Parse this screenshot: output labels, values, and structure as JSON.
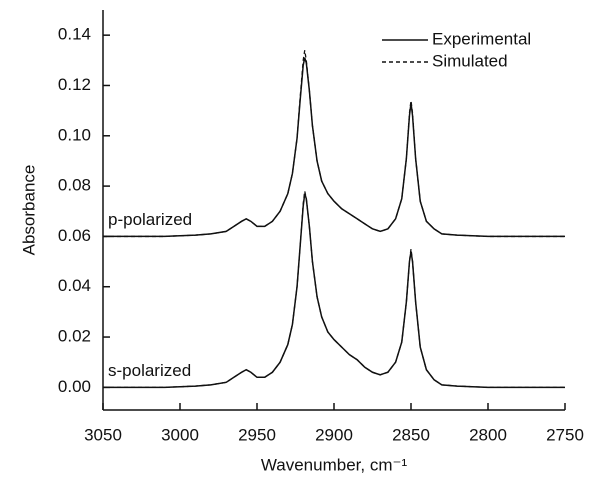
{
  "chart_data": {
    "type": "line",
    "xlabel": "Wavenumber, cm⁻¹",
    "ylabel": "Absorbance",
    "x": [
      3050,
      3030,
      3010,
      2990,
      2980,
      2970,
      2965,
      2960,
      2957,
      2954,
      2950,
      2945,
      2940,
      2935,
      2930,
      2927,
      2924,
      2922,
      2920,
      2919,
      2918,
      2916,
      2914,
      2911,
      2908,
      2904,
      2900,
      2895,
      2890,
      2885,
      2880,
      2875,
      2870,
      2865,
      2860,
      2856,
      2853,
      2851,
      2850,
      2849,
      2847,
      2844,
      2840,
      2835,
      2830,
      2820,
      2800,
      2780,
      2750
    ],
    "traces": [
      {
        "label": "p-polarized",
        "series": [
          {
            "name": "Experimental",
            "color": "#111111",
            "dash": false,
            "values": [
              0.06,
              0.06,
              0.06,
              0.0605,
              0.061,
              0.062,
              0.064,
              0.066,
              0.067,
              0.066,
              0.064,
              0.064,
              0.066,
              0.07,
              0.077,
              0.085,
              0.099,
              0.114,
              0.128,
              0.131,
              0.129,
              0.118,
              0.104,
              0.09,
              0.082,
              0.077,
              0.074,
              0.071,
              0.069,
              0.067,
              0.065,
              0.063,
              0.062,
              0.063,
              0.067,
              0.075,
              0.091,
              0.108,
              0.113,
              0.108,
              0.091,
              0.074,
              0.066,
              0.063,
              0.061,
              0.0605,
              0.06,
              0.06,
              0.06
            ]
          },
          {
            "name": "Simulated",
            "color": "#111111",
            "dash": true,
            "values": [
              0.06,
              0.06,
              0.06,
              0.0605,
              0.061,
              0.062,
              0.064,
              0.066,
              0.067,
              0.066,
              0.064,
              0.064,
              0.066,
              0.07,
              0.077,
              0.085,
              0.099,
              0.115,
              0.13,
              0.134,
              0.13,
              0.118,
              0.104,
              0.09,
              0.082,
              0.077,
              0.074,
              0.071,
              0.069,
              0.067,
              0.065,
              0.063,
              0.062,
              0.063,
              0.067,
              0.075,
              0.091,
              0.109,
              0.114,
              0.109,
              0.091,
              0.074,
              0.066,
              0.063,
              0.061,
              0.0605,
              0.06,
              0.06,
              0.06
            ]
          }
        ]
      },
      {
        "label": "s-polarized",
        "series": [
          {
            "name": "Experimental",
            "color": "#111111",
            "dash": false,
            "values": [
              0,
              0,
              0,
              0.0005,
              0.001,
              0.002,
              0.004,
              0.006,
              0.007,
              0.006,
              0.004,
              0.004,
              0.006,
              0.01,
              0.017,
              0.025,
              0.04,
              0.056,
              0.072,
              0.077,
              0.075,
              0.064,
              0.05,
              0.036,
              0.028,
              0.022,
              0.019,
              0.016,
              0.013,
              0.011,
              0.008,
              0.006,
              0.005,
              0.006,
              0.01,
              0.018,
              0.034,
              0.05,
              0.054,
              0.05,
              0.034,
              0.016,
              0.007,
              0.003,
              0.001,
              0.0005,
              0,
              0,
              0
            ]
          },
          {
            "name": "Simulated",
            "color": "#111111",
            "dash": true,
            "values": [
              0,
              0,
              0,
              0.0005,
              0.001,
              0.002,
              0.004,
              0.006,
              0.007,
              0.006,
              0.004,
              0.004,
              0.006,
              0.01,
              0.017,
              0.025,
              0.04,
              0.056,
              0.073,
              0.078,
              0.075,
              0.064,
              0.05,
              0.036,
              0.028,
              0.022,
              0.019,
              0.016,
              0.013,
              0.011,
              0.008,
              0.006,
              0.005,
              0.006,
              0.01,
              0.018,
              0.034,
              0.05,
              0.055,
              0.05,
              0.034,
              0.016,
              0.007,
              0.003,
              0.001,
              0.0005,
              0,
              0,
              0
            ]
          }
        ]
      }
    ],
    "xlim": [
      3050,
      2750
    ],
    "xticks": [
      3050,
      3000,
      2950,
      2900,
      2850,
      2800,
      2750
    ],
    "ylim": [
      -0.009,
      0.15
    ],
    "yticks": [
      {
        "value": 0,
        "label": "0.00"
      },
      {
        "value": 0.02,
        "label": "0.02"
      },
      {
        "value": 0.04,
        "label": "0.04"
      },
      {
        "value": 0.06,
        "label": "0.06"
      },
      {
        "value": 0.08,
        "label": "0.08"
      },
      {
        "value": 0.1,
        "label": "0.10"
      },
      {
        "value": 0.12,
        "label": "0.12"
      },
      {
        "value": 0.14,
        "label": "0.14"
      }
    ],
    "legend": "upper right",
    "grid": false
  }
}
